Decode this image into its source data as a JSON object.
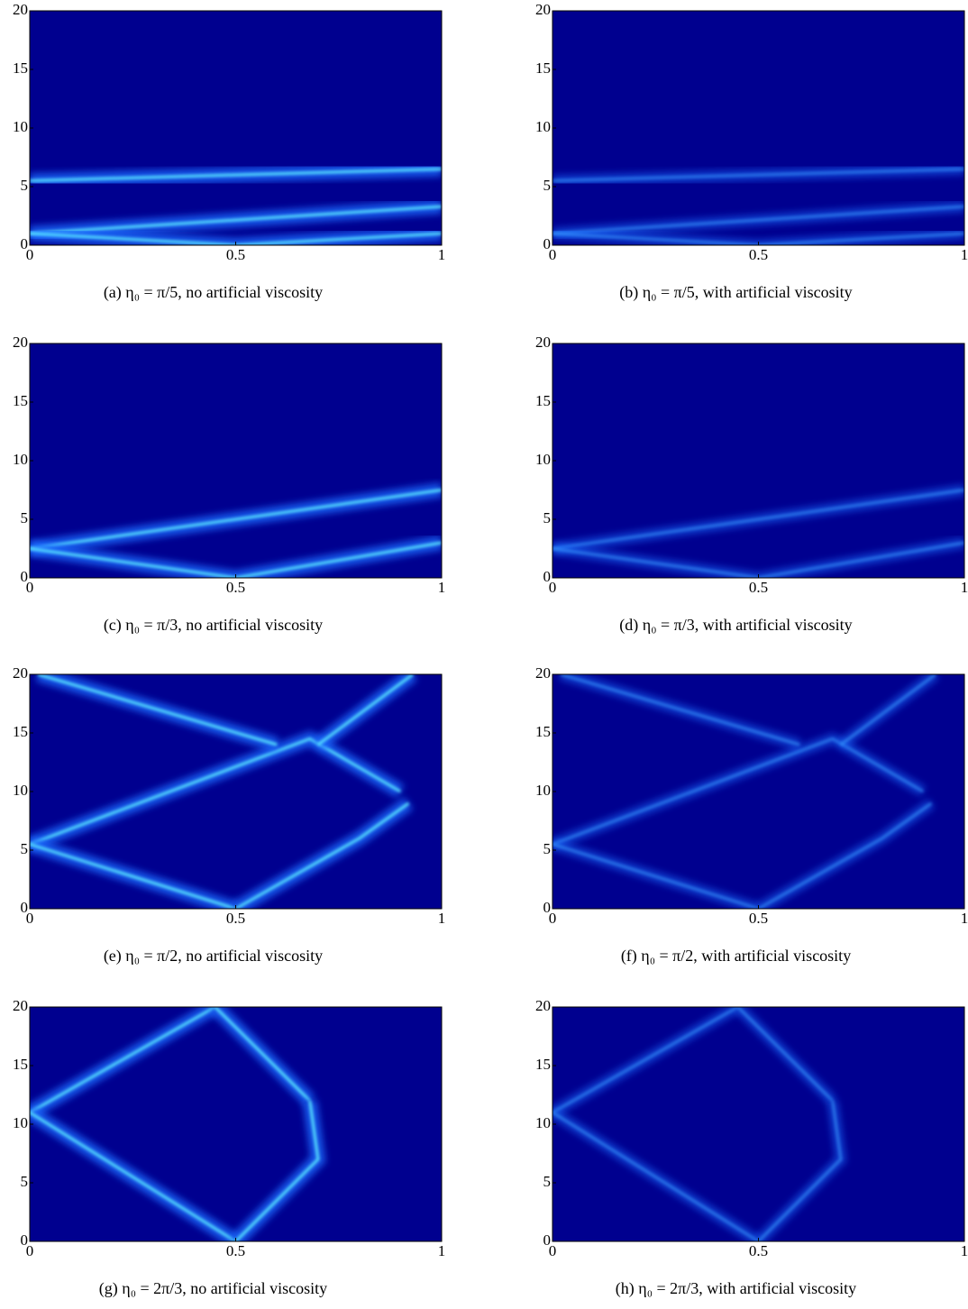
{
  "chart_data": [
    {
      "type": "heatmap",
      "caption": "(a) η₀ = π/5, no artificial viscosity",
      "xlim": [
        0,
        1
      ],
      "ylim": [
        0,
        20
      ],
      "xticks": [
        0,
        0.5,
        1
      ],
      "yticks": [
        0,
        5,
        10,
        15,
        20
      ]
    },
    {
      "type": "heatmap",
      "caption": "(b) η₀ = π/5, with artificial viscosity",
      "xlim": [
        0,
        1
      ],
      "ylim": [
        0,
        20
      ],
      "xticks": [
        0,
        0.5,
        1
      ],
      "yticks": [
        0,
        5,
        10,
        15,
        20
      ]
    },
    {
      "type": "heatmap",
      "caption": "(c) η₀ = π/3, no artificial viscosity",
      "xlim": [
        0,
        1
      ],
      "ylim": [
        0,
        20
      ],
      "xticks": [
        0,
        0.5,
        1
      ],
      "yticks": [
        0,
        5,
        10,
        15,
        20
      ]
    },
    {
      "type": "heatmap",
      "caption": "(d) η₀ = π/3, with artificial viscosity",
      "xlim": [
        0,
        1
      ],
      "ylim": [
        0,
        20
      ],
      "xticks": [
        0,
        0.5,
        1
      ],
      "yticks": [
        0,
        5,
        10,
        15,
        20
      ]
    },
    {
      "type": "heatmap",
      "caption": "(e) η₀ = π/2, no artificial viscosity",
      "xlim": [
        0,
        1
      ],
      "ylim": [
        0,
        20
      ],
      "xticks": [
        0,
        0.5,
        1
      ],
      "yticks": [
        0,
        5,
        10,
        15,
        20
      ]
    },
    {
      "type": "heatmap",
      "caption": "(f) η₀ = π/2, with artificial viscosity",
      "xlim": [
        0,
        1
      ],
      "ylim": [
        0,
        20
      ],
      "xticks": [
        0,
        0.5,
        1
      ],
      "yticks": [
        0,
        5,
        10,
        15,
        20
      ]
    },
    {
      "type": "heatmap",
      "caption": "(g) η₀ = 2π/3, no artificial viscosity",
      "xlim": [
        0,
        1
      ],
      "ylim": [
        0,
        20
      ],
      "xticks": [
        0,
        0.5,
        1
      ],
      "yticks": [
        0,
        5,
        10,
        15,
        20
      ]
    },
    {
      "type": "heatmap",
      "caption": "(h) η₀ = 2π/3, with artificial viscosity",
      "xlim": [
        0,
        1
      ],
      "ylim": [
        0,
        20
      ],
      "xticks": [
        0,
        0.5,
        1
      ],
      "yticks": [
        0,
        5,
        10,
        15,
        20
      ]
    }
  ]
}
